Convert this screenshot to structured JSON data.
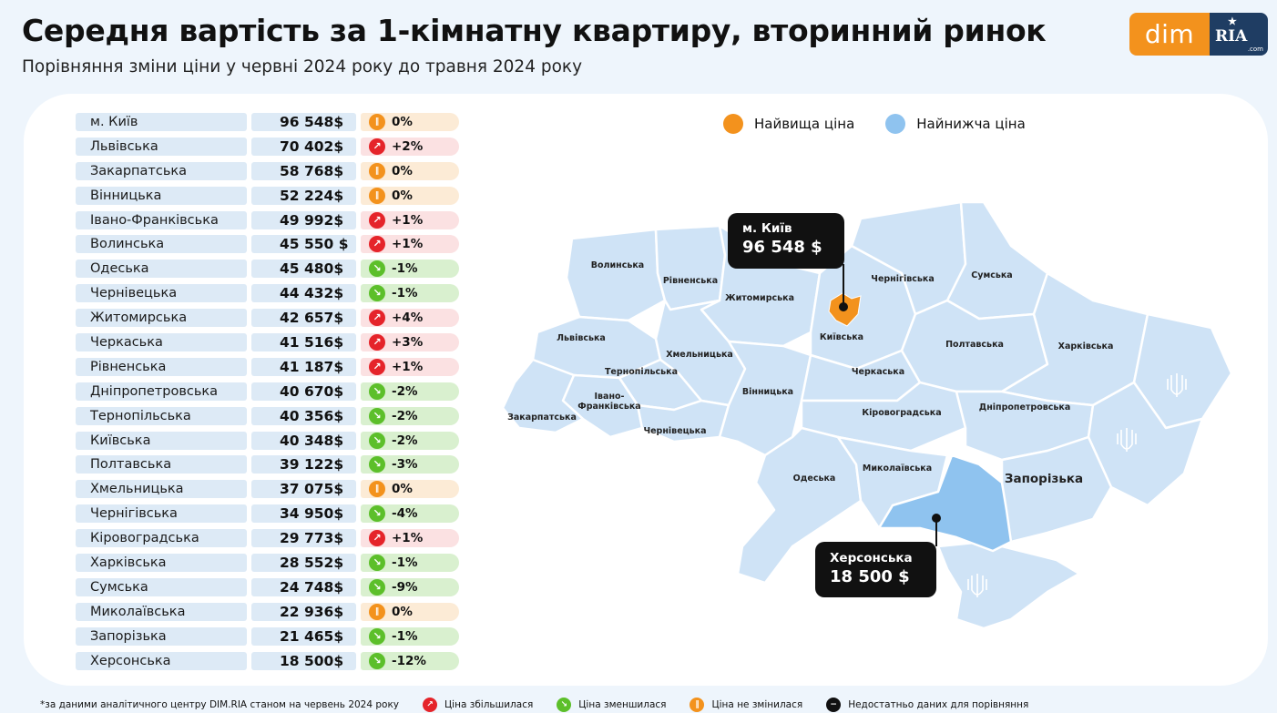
{
  "header": {
    "title": "Середня вартість за 1-кімнатну квартиру, вторинний ринок",
    "subtitle": "Порівняння зміни ціни у червні 2024 року до травня 2024 року"
  },
  "logo": {
    "dim": "dim",
    "ria": "RIA",
    "com": ".com"
  },
  "colors": {
    "highest": "#f3921d",
    "lowest": "#8fc3ef",
    "up": "#e5242a",
    "down": "#5cbf2a",
    "same": "#f3921d",
    "map_fill": "#cfe3f6"
  },
  "table": {
    "rows": [
      {
        "region": "м. Київ",
        "price": "96 548$",
        "change": "0%",
        "trend": "same"
      },
      {
        "region": "Львівська",
        "price": "70 402$",
        "change": "+2%",
        "trend": "up"
      },
      {
        "region": "Закарпатська",
        "price": "58 768$",
        "change": "0%",
        "trend": "same"
      },
      {
        "region": "Вінницька",
        "price": "52 224$",
        "change": "0%",
        "trend": "same"
      },
      {
        "region": "Івано-Франківська",
        "price": "49 992$",
        "change": "+1%",
        "trend": "up"
      },
      {
        "region": "Волинська",
        "price": "45 550 $",
        "change": "+1%",
        "trend": "up"
      },
      {
        "region": "Одеська",
        "price": "45 480$",
        "change": "-1%",
        "trend": "down"
      },
      {
        "region": "Чернівецька",
        "price": "44 432$",
        "change": "-1%",
        "trend": "down"
      },
      {
        "region": "Житомирська",
        "price": "42 657$",
        "change": "+4%",
        "trend": "up"
      },
      {
        "region": "Черкаська",
        "price": "41 516$",
        "change": "+3%",
        "trend": "up"
      },
      {
        "region": "Рівненська",
        "price": "41 187$",
        "change": "+1%",
        "trend": "up"
      },
      {
        "region": "Дніпропетровська",
        "price": "40 670$",
        "change": "-2%",
        "trend": "down"
      },
      {
        "region": "Тернопільська",
        "price": "40 356$",
        "change": "-2%",
        "trend": "down"
      },
      {
        "region": "Київська",
        "price": "40 348$",
        "change": "-2%",
        "trend": "down"
      },
      {
        "region": "Полтавська",
        "price": "39 122$",
        "change": "-3%",
        "trend": "down"
      },
      {
        "region": "Хмельницька",
        "price": "37 075$",
        "change": "0%",
        "trend": "same"
      },
      {
        "region": "Чернігівська",
        "price": "34 950$",
        "change": "-4%",
        "trend": "down"
      },
      {
        "region": "Кіровоградська",
        "price": "29 773$",
        "change": "+1%",
        "trend": "up"
      },
      {
        "region": "Харківська",
        "price": "28 552$",
        "change": "-1%",
        "trend": "down"
      },
      {
        "region": "Сумська",
        "price": "24 748$",
        "change": "-9%",
        "trend": "down"
      },
      {
        "region": "Миколаївська",
        "price": "22 936$",
        "change": "0%",
        "trend": "same"
      },
      {
        "region": "Запорізька",
        "price": "21 465$",
        "change": "-1%",
        "trend": "down"
      },
      {
        "region": "Херсонська",
        "price": "18 500$",
        "change": "-12%",
        "trend": "down"
      }
    ]
  },
  "legend": {
    "highest": "Найвища ціна",
    "lowest": "Найнижча ціна"
  },
  "map": {
    "labels": {
      "volynska": "Волинська",
      "rivnenska": "Рівненська",
      "zhytomyrska": "Житомирська",
      "chernihivska": "Чернігівська",
      "sumska": "Сумська",
      "lvivska": "Львівська",
      "khmelnytska": "Хмельницька",
      "kyivska": "Київська",
      "poltavska": "Полтавська",
      "kharkivska": "Харківська",
      "ternopilska": "Тернопільська",
      "cherkaska": "Черкаська",
      "ivano1": "Івано-",
      "ivano2": "Франківська",
      "vinnytska": "Вінницька",
      "zakarpatska": "Закарпатська",
      "kirovohradska": "Кіровоградська",
      "dnipropetrovska": "Дніпропетровська",
      "chernivetska": "Чернівецька",
      "odeska": "Одеська",
      "mykolaivska": "Миколаївська",
      "zaporizka": "Запорізька"
    },
    "callout_kyiv": {
      "name": "м. Київ",
      "value": "96 548 $"
    },
    "callout_kherson": {
      "name": "Херсонська",
      "value": "18 500 $"
    },
    "coat_of_arms": "ψ"
  },
  "footer": {
    "note": "*за даними аналітичного центру DIM.RIA станом на червень 2024 року",
    "up": "Ціна збільшилася",
    "down": "Ціна зменшилася",
    "same": "Ціна не змінилася",
    "na": "Недостатньо даних для порівняння"
  }
}
